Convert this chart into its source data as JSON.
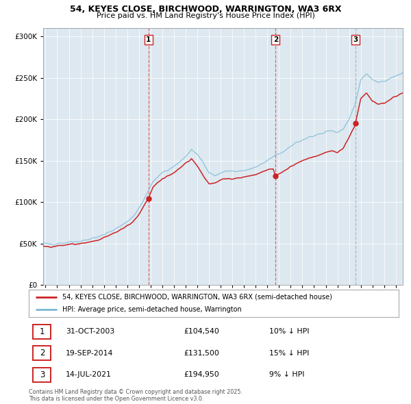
{
  "title_line1": "54, KEYES CLOSE, BIRCHWOOD, WARRINGTON, WA3 6RX",
  "title_line2": "Price paid vs. HM Land Registry's House Price Index (HPI)",
  "legend_label_red": "54, KEYES CLOSE, BIRCHWOOD, WARRINGTON, WA3 6RX (semi-detached house)",
  "legend_label_blue": "HPI: Average price, semi-detached house, Warrington",
  "transactions": [
    {
      "num": 1,
      "date_label": "31-OCT-2003",
      "date_x": 2003.83,
      "price": 104540,
      "hpi_pct": "10% ↓ HPI"
    },
    {
      "num": 2,
      "date_label": "19-SEP-2014",
      "date_x": 2014.71,
      "price": 131500,
      "hpi_pct": "15% ↓ HPI"
    },
    {
      "num": 3,
      "date_label": "14-JUL-2021",
      "date_x": 2021.54,
      "price": 194950,
      "hpi_pct": "9% ↓ HPI"
    }
  ],
  "copyright_text": "Contains HM Land Registry data © Crown copyright and database right 2025.\nThis data is licensed under the Open Government Licence v3.0.",
  "hpi_color": "#7bb8d4",
  "price_color": "#cc2222",
  "vline_color_12": "#dd4444",
  "vline_color_3": "#aaaaaa",
  "chart_bg": "#dde8f0",
  "ylim": [
    0,
    310000
  ],
  "xlim_start": 1994.8,
  "xlim_end": 2025.6
}
